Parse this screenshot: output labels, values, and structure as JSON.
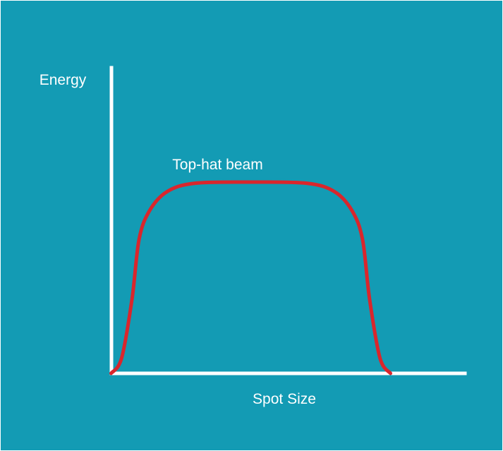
{
  "colors": {
    "background": "#139bb4",
    "axis": "#ffffff",
    "curve": "#d9262c",
    "text": "#ffffff"
  },
  "chart_data": {
    "type": "line",
    "title": "",
    "xlabel": "Spot Size",
    "ylabel": "Energy",
    "grid": false,
    "legend": "none",
    "xlim": [
      0,
      10
    ],
    "ylim": [
      0,
      10
    ],
    "series": [
      {
        "name": "Top-hat beam",
        "x": [
          1.0,
          1.3,
          1.6,
          1.8,
          2.1,
          2.6,
          3.4,
          5.0,
          6.6,
          7.4,
          7.9,
          8.2,
          8.4,
          8.7,
          9.0
        ],
        "y": [
          0.0,
          0.8,
          3.9,
          7.0,
          8.5,
          9.5,
          9.94,
          10.0,
          9.94,
          9.5,
          8.5,
          7.0,
          3.9,
          0.8,
          0.0
        ]
      }
    ],
    "annotations": [
      {
        "text": "Top-hat beam",
        "x": 5.0,
        "y": 10.0
      }
    ]
  }
}
